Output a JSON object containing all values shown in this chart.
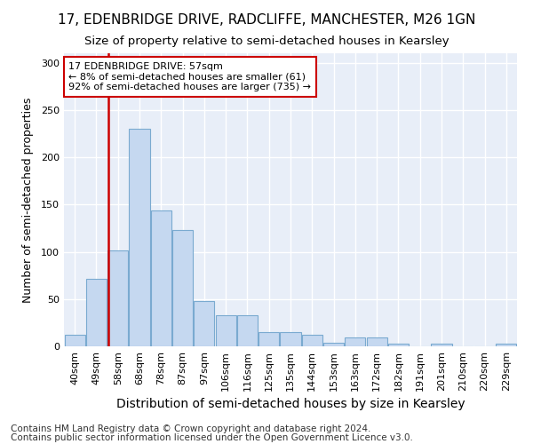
{
  "title": "17, EDENBRIDGE DRIVE, RADCLIFFE, MANCHESTER, M26 1GN",
  "subtitle": "Size of property relative to semi-detached houses in Kearsley",
  "xlabel": "Distribution of semi-detached houses by size in Kearsley",
  "ylabel": "Number of semi-detached properties",
  "categories": [
    "40sqm",
    "49sqm",
    "58sqm",
    "68sqm",
    "78sqm",
    "87sqm",
    "97sqm",
    "106sqm",
    "116sqm",
    "125sqm",
    "135sqm",
    "144sqm",
    "153sqm",
    "163sqm",
    "172sqm",
    "182sqm",
    "191sqm",
    "201sqm",
    "210sqm",
    "220sqm",
    "229sqm"
  ],
  "values": [
    12,
    71,
    101,
    230,
    144,
    123,
    48,
    33,
    33,
    15,
    15,
    12,
    4,
    9,
    9,
    3,
    0,
    3,
    0,
    0,
    3
  ],
  "bar_color": "#c5d8f0",
  "bar_edge_color": "#7aaad0",
  "property_line_color": "#cc0000",
  "annotation_text": "17 EDENBRIDGE DRIVE: 57sqm\n← 8% of semi-detached houses are smaller (61)\n92% of semi-detached houses are larger (735) →",
  "annotation_box_color": "#ffffff",
  "annotation_box_edge": "#cc0000",
  "ylim": [
    0,
    310
  ],
  "background_color": "#ffffff",
  "plot_bg_color": "#e8eef8",
  "grid_color": "#ffffff",
  "footer_line1": "Contains HM Land Registry data © Crown copyright and database right 2024.",
  "footer_line2": "Contains public sector information licensed under the Open Government Licence v3.0.",
  "title_fontsize": 11,
  "subtitle_fontsize": 9.5,
  "xlabel_fontsize": 10,
  "ylabel_fontsize": 9,
  "tick_fontsize": 8,
  "annotation_fontsize": 8,
  "footer_fontsize": 7.5
}
